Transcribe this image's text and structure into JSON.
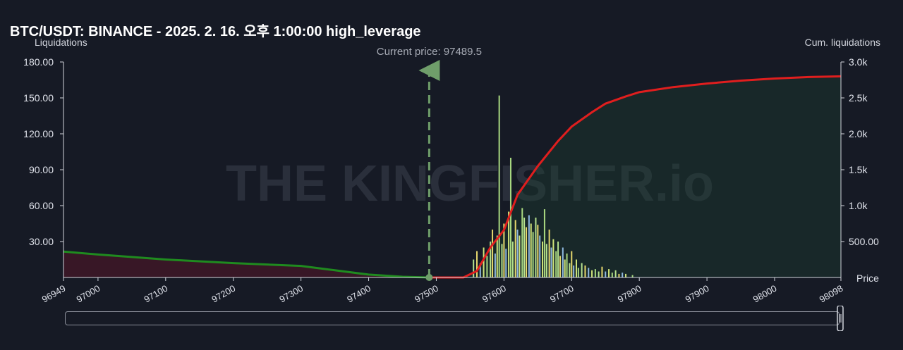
{
  "chart_data": {
    "type": "bar",
    "title": "BTC/USDT: BINANCE - 2025. 2. 16. 오후 1:00:00 high_leverage",
    "ylabel": "Liquidations",
    "y2label": "Cum. liquidations",
    "xlabel": "Price",
    "xlim": [
      96949,
      98098
    ],
    "ylim": [
      0,
      180
    ],
    "y2lim": [
      0,
      3000
    ],
    "left_ticks": [
      "30.00",
      "60.00",
      "90.00",
      "120.00",
      "150.00",
      "180.00"
    ],
    "right_ticks": [
      "500.00",
      "1.0k",
      "1.5k",
      "2.0k",
      "2.5k",
      "3.0k"
    ],
    "x_ticks": [
      "96949",
      "97000",
      "97100",
      "97200",
      "97300",
      "97400",
      "97500",
      "97600",
      "97700",
      "97800",
      "97900",
      "98000",
      "98098"
    ],
    "current_price_label": "Current price: 97489.5",
    "current_price": 97489.5,
    "watermark": "THE KINGFISHER.io",
    "bars": [
      {
        "x": 97555,
        "y": 15
      },
      {
        "x": 97560,
        "y": 22
      },
      {
        "x": 97565,
        "y": 12
      },
      {
        "x": 97570,
        "y": 25
      },
      {
        "x": 97575,
        "y": 18
      },
      {
        "x": 97580,
        "y": 30
      },
      {
        "x": 97583,
        "y": 40
      },
      {
        "x": 97587,
        "y": 20
      },
      {
        "x": 97590,
        "y": 35
      },
      {
        "x": 97593,
        "y": 152
      },
      {
        "x": 97597,
        "y": 28
      },
      {
        "x": 97600,
        "y": 45
      },
      {
        "x": 97603,
        "y": 24
      },
      {
        "x": 97607,
        "y": 55
      },
      {
        "x": 97610,
        "y": 100
      },
      {
        "x": 97613,
        "y": 30
      },
      {
        "x": 97617,
        "y": 48
      },
      {
        "x": 97620,
        "y": 40
      },
      {
        "x": 97623,
        "y": 35
      },
      {
        "x": 97627,
        "y": 58
      },
      {
        "x": 97630,
        "y": 50
      },
      {
        "x": 97633,
        "y": 42
      },
      {
        "x": 97637,
        "y": 52
      },
      {
        "x": 97640,
        "y": 45
      },
      {
        "x": 97643,
        "y": 38
      },
      {
        "x": 97647,
        "y": 50
      },
      {
        "x": 97650,
        "y": 44
      },
      {
        "x": 97653,
        "y": 35
      },
      {
        "x": 97657,
        "y": 30
      },
      {
        "x": 97660,
        "y": 57
      },
      {
        "x": 97663,
        "y": 28
      },
      {
        "x": 97667,
        "y": 40
      },
      {
        "x": 97670,
        "y": 25
      },
      {
        "x": 97673,
        "y": 32
      },
      {
        "x": 97677,
        "y": 22
      },
      {
        "x": 97680,
        "y": 30
      },
      {
        "x": 97683,
        "y": 18
      },
      {
        "x": 97687,
        "y": 25
      },
      {
        "x": 97690,
        "y": 15
      },
      {
        "x": 97693,
        "y": 20
      },
      {
        "x": 97697,
        "y": 12
      },
      {
        "x": 97700,
        "y": 22
      },
      {
        "x": 97703,
        "y": 10
      },
      {
        "x": 97707,
        "y": 15
      },
      {
        "x": 97710,
        "y": 8
      },
      {
        "x": 97715,
        "y": 12
      },
      {
        "x": 97720,
        "y": 10
      },
      {
        "x": 97725,
        "y": 8
      },
      {
        "x": 97730,
        "y": 6
      },
      {
        "x": 97735,
        "y": 7
      },
      {
        "x": 97740,
        "y": 5
      },
      {
        "x": 97745,
        "y": 9
      },
      {
        "x": 97750,
        "y": 5
      },
      {
        "x": 97755,
        "y": 7
      },
      {
        "x": 97760,
        "y": 4
      },
      {
        "x": 97765,
        "y": 6
      },
      {
        "x": 97770,
        "y": 3
      },
      {
        "x": 97775,
        "y": 4
      },
      {
        "x": 97780,
        "y": 3
      },
      {
        "x": 97790,
        "y": 2
      }
    ],
    "series": [
      {
        "values_x": [
          96949,
          97000,
          97100,
          97200,
          97300,
          97350,
          97400,
          97450,
          97489
        ],
        "values_y": [
          360,
          320,
          250,
          200,
          160,
          100,
          40,
          10,
          0
        ]
      },
      {
        "values_x": [
          97489,
          97540,
          97560,
          97580,
          97600,
          97620,
          97650,
          97680,
          97700,
          97730,
          97750,
          97780,
          97800,
          97850,
          97900,
          97950,
          98000,
          98050,
          98098
        ],
        "values_y": [
          0,
          0,
          90,
          420,
          660,
          1150,
          1550,
          1900,
          2100,
          2300,
          2420,
          2520,
          2580,
          2650,
          2700,
          2740,
          2770,
          2790,
          2800
        ]
      }
    ]
  }
}
